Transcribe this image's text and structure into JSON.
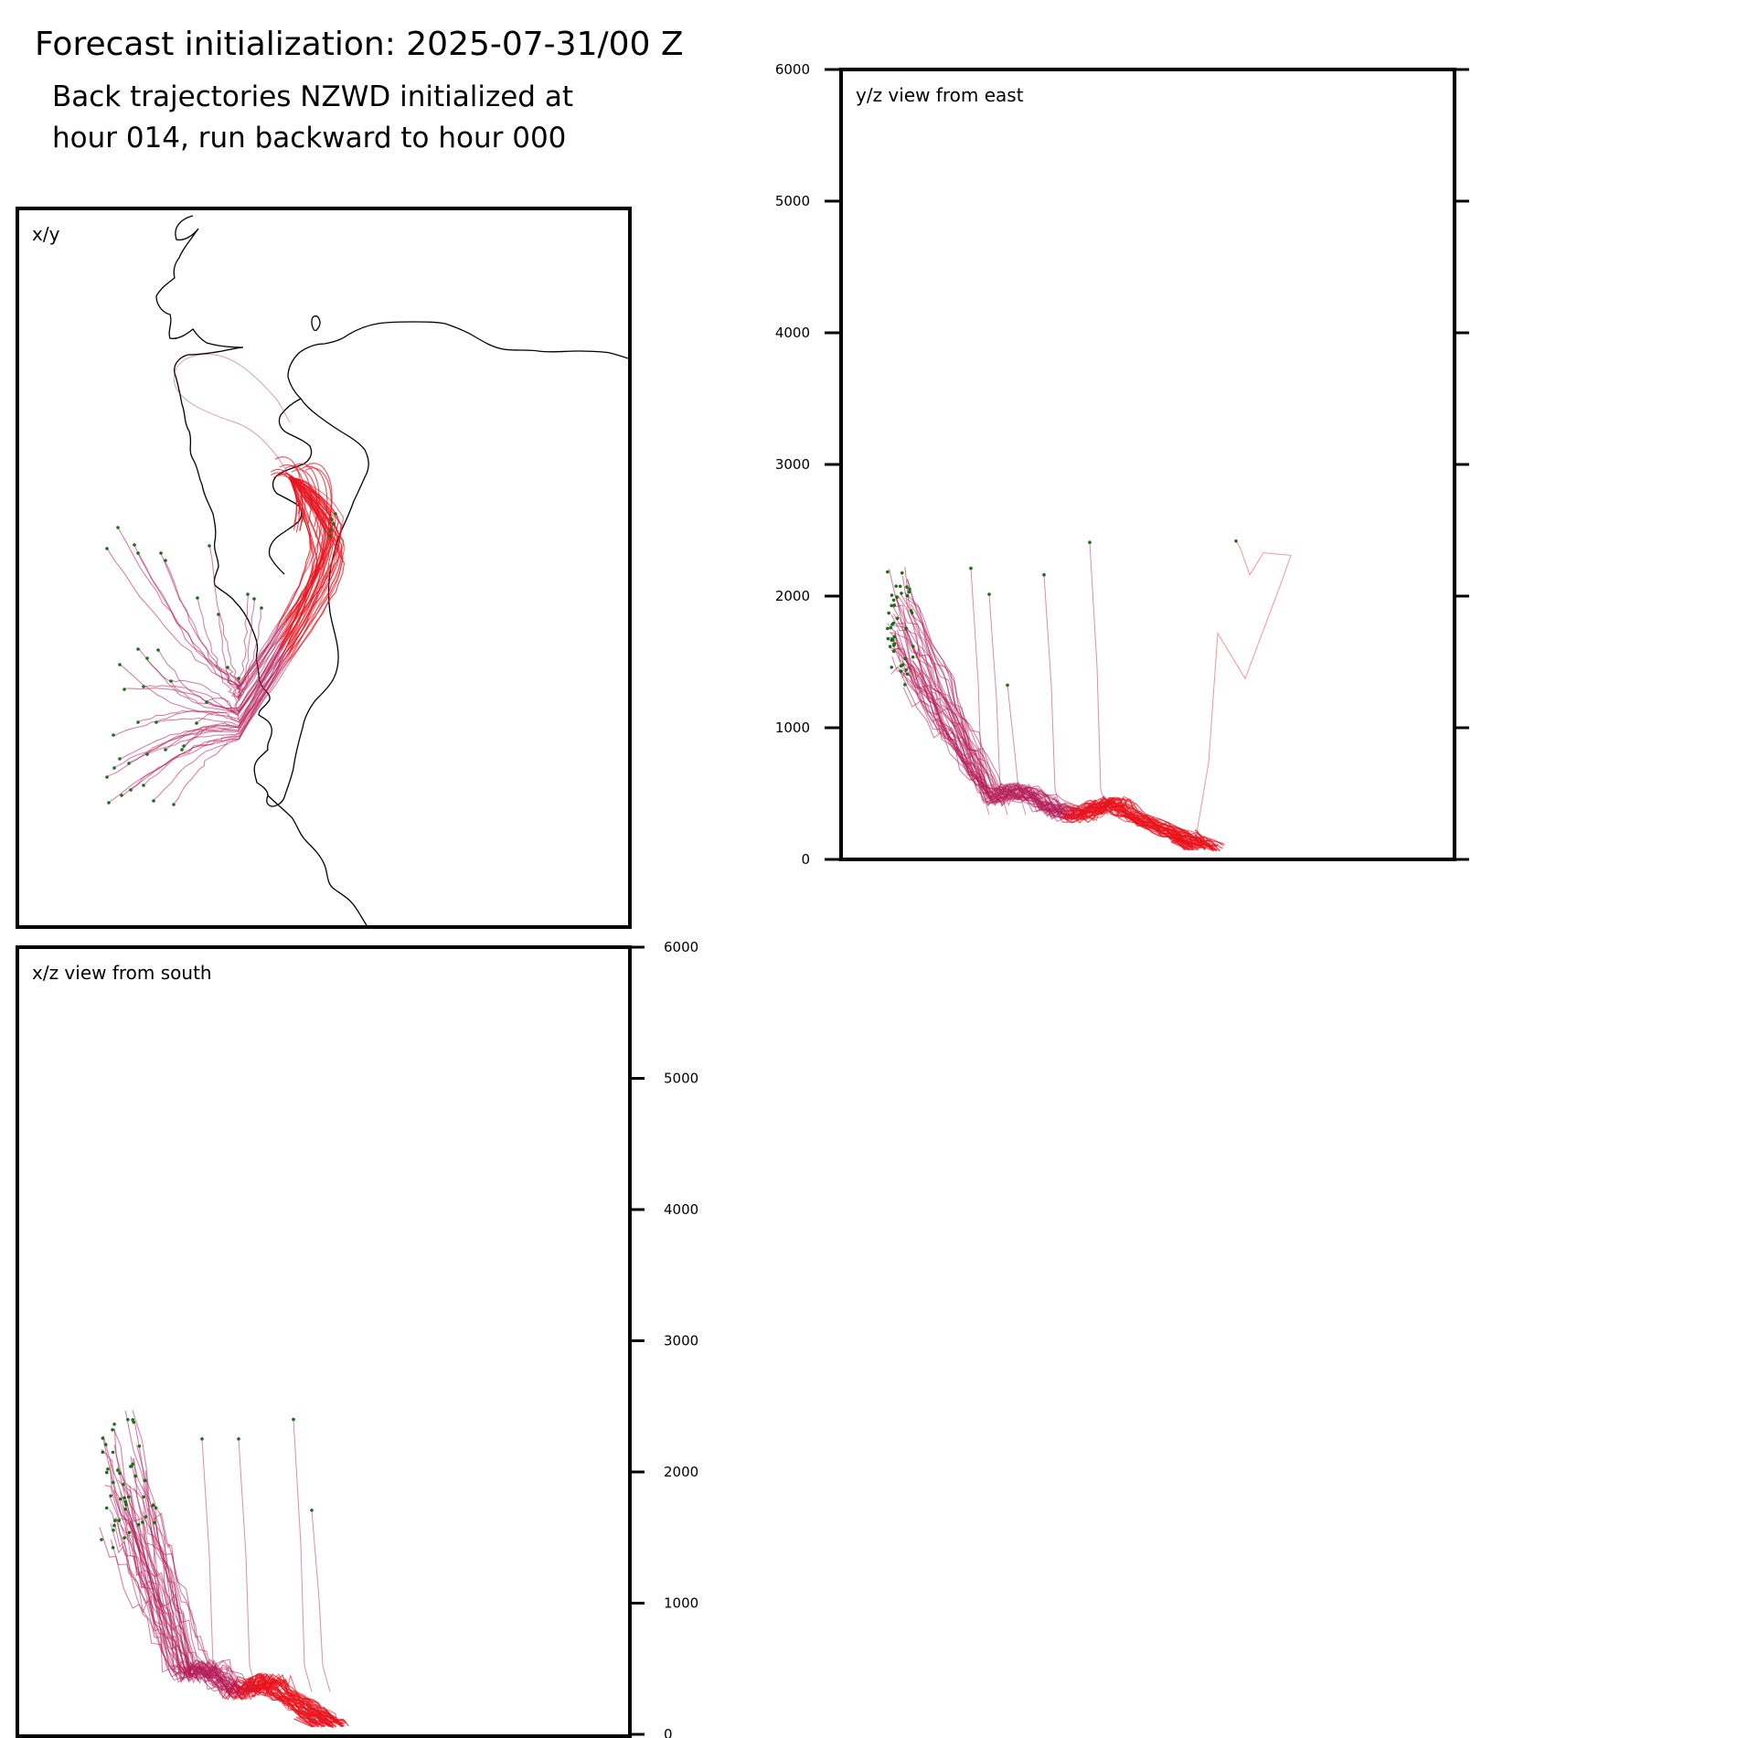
{
  "header": {
    "title": "Forecast initialization: 2025-07-31/00 Z",
    "subtitle_line1": "Back trajectories NZWD initialized at",
    "subtitle_line2": "hour 014, run backward to hour 000"
  },
  "panels": {
    "xy": {
      "label": "x/y"
    },
    "yz": {
      "label": "y/z view from east"
    },
    "xz": {
      "label": "x/z view from south"
    }
  },
  "colors": {
    "trajectory_early": "#e8141e",
    "trajectory_late": "#b41e5a",
    "start_marker": "#1a6e1a",
    "coastline": "#000000"
  },
  "chart_data": [
    {
      "type": "line",
      "panel": "xy",
      "title": "x/y",
      "description_axes": "horizontal map view (no numeric axes)",
      "features": [
        "coastline",
        "back trajectories converging toward release point",
        "trajectory endpoints marked"
      ],
      "series_count": 40,
      "grid": false
    },
    {
      "type": "line",
      "panel": "yz",
      "title": "y/z view from east",
      "ylabel": "",
      "ylim": [
        0,
        6000
      ],
      "y_ticks": [
        0,
        1000,
        2000,
        3000,
        4000,
        5000,
        6000
      ],
      "y_tick_labels": [
        "0",
        "1000",
        "2000",
        "3000",
        "4000",
        "5000",
        "6000"
      ],
      "y_axis_side": "left",
      "grid": false,
      "series_summary": [
        {
          "name": "",
          "endpoint_height_range": [
            1300,
            2200
          ],
          "release_height": 50
        },
        {
          "name": "",
          "endpoint_height_range": [
            2100,
            2410
          ],
          "release_height": 50
        }
      ]
    },
    {
      "type": "line",
      "panel": "xz",
      "title": "x/z view from south",
      "ylabel": "",
      "ylim": [
        0,
        6000
      ],
      "y_ticks": [
        0,
        1000,
        2000,
        3000,
        4000,
        5000,
        6000
      ],
      "y_tick_labels": [
        "0",
        "1000",
        "2000",
        "3000",
        "4000",
        "5000",
        "6000"
      ],
      "y_axis_side": "right",
      "grid": false,
      "series_summary": [
        {
          "name": "",
          "endpoint_height_range": [
            1400,
            2400
          ],
          "release_height": 50
        }
      ]
    }
  ]
}
